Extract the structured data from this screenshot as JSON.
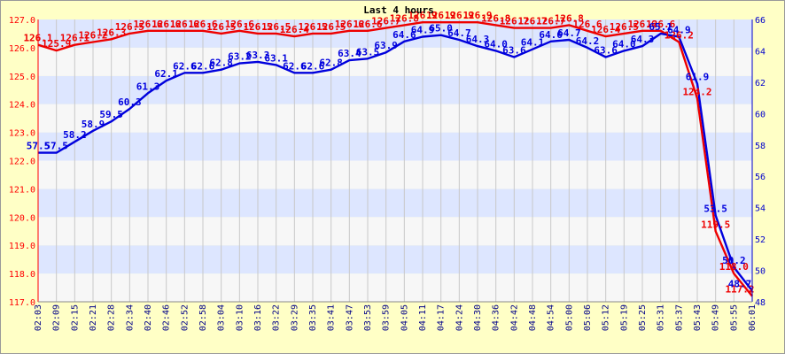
{
  "chart_data": {
    "type": "line",
    "title": "Last 4 hours",
    "grid": true,
    "colors": {
      "background": "#FFFFC6",
      "band_light": "#F7F7F7",
      "band_dark": "#DDE6FF",
      "gridline": "#C8C8C8",
      "left_axis": "#FF0000",
      "right_axis": "#0000CC"
    },
    "x_categories": [
      "02:03",
      "02:09",
      "02:15",
      "02:21",
      "02:28",
      "02:34",
      "02:40",
      "02:46",
      "02:52",
      "02:58",
      "03:04",
      "03:10",
      "03:16",
      "03:22",
      "03:29",
      "03:35",
      "03:41",
      "03:47",
      "03:53",
      "03:59",
      "04:05",
      "04:11",
      "04:17",
      "04:24",
      "04:30",
      "04:36",
      "04:42",
      "04:48",
      "04:54",
      "05:00",
      "05:06",
      "05:12",
      "05:19",
      "05:25",
      "05:31",
      "05:37",
      "05:43",
      "05:49",
      "05:55",
      "06:01"
    ],
    "y_left": {
      "range": [
        117.0,
        127.0
      ],
      "ticks": [
        "117.0",
        "118.0",
        "119.0",
        "120.0",
        "121.0",
        "122.0",
        "123.0",
        "124.0",
        "125.0",
        "126.0",
        "127.0"
      ]
    },
    "y_right": {
      "range": [
        48,
        66
      ],
      "ticks": [
        "48",
        "50",
        "52",
        "54",
        "56",
        "58",
        "60",
        "62",
        "64",
        "66"
      ]
    },
    "series": [
      {
        "axis": "left",
        "color": "#EE0000",
        "points": [
          [
            0,
            126.1
          ],
          [
            1,
            125.9
          ],
          [
            2,
            126.1
          ],
          [
            3,
            126.2
          ],
          [
            4,
            126.3
          ],
          [
            5,
            126.5
          ],
          [
            6,
            126.6
          ],
          [
            7,
            126.6
          ],
          [
            8,
            126.6
          ],
          [
            9,
            126.6
          ],
          [
            10,
            126.5
          ],
          [
            11,
            126.6
          ],
          [
            12,
            126.5
          ],
          [
            13,
            126.5
          ],
          [
            14,
            126.4
          ],
          [
            15,
            126.5
          ],
          [
            16,
            126.5
          ],
          [
            17,
            126.6
          ],
          [
            18,
            126.6
          ],
          [
            19,
            126.7
          ],
          [
            20,
            126.8
          ],
          [
            21,
            126.9
          ],
          [
            22,
            126.9
          ],
          [
            23,
            126.9
          ],
          [
            24,
            126.9
          ],
          [
            25,
            126.8
          ],
          [
            26,
            126.7
          ],
          [
            27,
            126.7
          ],
          [
            28,
            126.7
          ],
          [
            29,
            126.8
          ],
          [
            30,
            126.6
          ],
          [
            31,
            126.4
          ],
          [
            32,
            126.5
          ],
          [
            33,
            126.6
          ],
          [
            34,
            126.6
          ],
          [
            35,
            126.2
          ],
          [
            36,
            124.2
          ],
          [
            37,
            119.5
          ],
          [
            38,
            118.0
          ],
          [
            39,
            117.2
          ]
        ],
        "labels": [
          {
            "i": 0,
            "text": "126.1"
          },
          {
            "i": 1,
            "text": "125.9"
          },
          {
            "i": 2,
            "text": "126.1"
          },
          {
            "i": 3,
            "text": "126.2"
          },
          {
            "i": 4,
            "text": "126.3"
          },
          {
            "i": 5,
            "text": "126.5"
          },
          {
            "i": 6,
            "text": "126.6"
          },
          {
            "i": 7,
            "text": "126.6"
          },
          {
            "i": 8,
            "text": "126.6"
          },
          {
            "i": 9,
            "text": "126.6"
          },
          {
            "i": 10,
            "text": "126.5"
          },
          {
            "i": 11,
            "text": "126.6"
          },
          {
            "i": 12,
            "text": "126.5"
          },
          {
            "i": 13,
            "text": "126.5"
          },
          {
            "i": 14,
            "text": "126.4"
          },
          {
            "i": 15,
            "text": "126.5"
          },
          {
            "i": 16,
            "text": "126.5"
          },
          {
            "i": 17,
            "text": "126.6"
          },
          {
            "i": 18,
            "text": "126.6"
          },
          {
            "i": 19,
            "text": "126.7"
          },
          {
            "i": 20,
            "text": "126.8"
          },
          {
            "i": 21,
            "text": "126.9"
          },
          {
            "i": 22,
            "text": "126.9"
          },
          {
            "i": 23,
            "text": "126.9"
          },
          {
            "i": 24,
            "text": "126.9"
          },
          {
            "i": 25,
            "text": "126.8"
          },
          {
            "i": 26,
            "text": "126.7"
          },
          {
            "i": 27,
            "text": "126.7"
          },
          {
            "i": 28,
            "text": "126.7"
          },
          {
            "i": 29,
            "text": "126.8"
          },
          {
            "i": 30,
            "text": "126.6"
          },
          {
            "i": 31,
            "text": "126.4"
          },
          {
            "i": 32,
            "text": "126.5"
          },
          {
            "i": 33,
            "text": "126.6"
          },
          {
            "i": 34,
            "text": "126.6"
          },
          {
            "i": 35,
            "text": "126.2"
          },
          {
            "i": 36,
            "text": "124.2"
          },
          {
            "i": 37,
            "text": "119.5"
          },
          {
            "i": 38,
            "text": "118.0"
          },
          {
            "i": 39,
            "text": "117.2"
          }
        ]
      },
      {
        "axis": "right",
        "color": "#0000DD",
        "points": [
          [
            0,
            57.5
          ],
          [
            1,
            57.5
          ],
          [
            2,
            58.2
          ],
          [
            3,
            58.9
          ],
          [
            4,
            59.5
          ],
          [
            5,
            60.3
          ],
          [
            6,
            61.3
          ],
          [
            7,
            62.1
          ],
          [
            8,
            62.6
          ],
          [
            9,
            62.6
          ],
          [
            10,
            62.8
          ],
          [
            11,
            63.2
          ],
          [
            12,
            63.3
          ],
          [
            13,
            63.1
          ],
          [
            14,
            62.6
          ],
          [
            15,
            62.6
          ],
          [
            16,
            62.8
          ],
          [
            17,
            63.4
          ],
          [
            18,
            63.5
          ],
          [
            19,
            63.9
          ],
          [
            20,
            64.6
          ],
          [
            21,
            64.9
          ],
          [
            22,
            65.0
          ],
          [
            23,
            64.7
          ],
          [
            24,
            64.3
          ],
          [
            25,
            64.0
          ],
          [
            26,
            63.6
          ],
          [
            27,
            64.1
          ],
          [
            28,
            64.6
          ],
          [
            29,
            64.7
          ],
          [
            30,
            64.2
          ],
          [
            31,
            63.6
          ],
          [
            32,
            64.0
          ],
          [
            33,
            64.3
          ],
          [
            34,
            65.1
          ],
          [
            35,
            64.9
          ],
          [
            36,
            61.9
          ],
          [
            37,
            53.5
          ],
          [
            38,
            50.2
          ],
          [
            39,
            48.7
          ]
        ],
        "labels": [
          {
            "i": 0,
            "text": "57.5"
          },
          {
            "i": 1,
            "text": "57.5"
          },
          {
            "i": 2,
            "text": "58.2"
          },
          {
            "i": 3,
            "text": "58.9"
          },
          {
            "i": 4,
            "text": "59.5"
          },
          {
            "i": 5,
            "text": "60.3"
          },
          {
            "i": 6,
            "text": "61.3"
          },
          {
            "i": 7,
            "text": "62.1"
          },
          {
            "i": 8,
            "text": "62.6"
          },
          {
            "i": 9,
            "text": "62.6"
          },
          {
            "i": 10,
            "text": "62.8"
          },
          {
            "i": 11,
            "text": "63.2"
          },
          {
            "i": 12,
            "text": "63.3"
          },
          {
            "i": 13,
            "text": "63.1"
          },
          {
            "i": 14,
            "text": "62.6"
          },
          {
            "i": 15,
            "text": "62.6"
          },
          {
            "i": 16,
            "text": "62.8"
          },
          {
            "i": 17,
            "text": "63.4"
          },
          {
            "i": 18,
            "text": "63.5"
          },
          {
            "i": 19,
            "text": "63.9"
          },
          {
            "i": 20,
            "text": "64.6"
          },
          {
            "i": 21,
            "text": "64.9"
          },
          {
            "i": 22,
            "text": "65.0"
          },
          {
            "i": 23,
            "text": "64.7"
          },
          {
            "i": 24,
            "text": "64.3"
          },
          {
            "i": 25,
            "text": "64.0"
          },
          {
            "i": 26,
            "text": "63.6"
          },
          {
            "i": 27,
            "text": "64.1"
          },
          {
            "i": 28,
            "text": "64.6"
          },
          {
            "i": 29,
            "text": "64.7"
          },
          {
            "i": 30,
            "text": "64.2"
          },
          {
            "i": 31,
            "text": "63.6"
          },
          {
            "i": 32,
            "text": "64.0"
          },
          {
            "i": 33,
            "text": "64.3"
          },
          {
            "i": 34,
            "text": "65.1"
          },
          {
            "i": 35,
            "text": "64.9"
          },
          {
            "i": 36,
            "text": "61.9"
          },
          {
            "i": 37,
            "text": "53.5"
          },
          {
            "i": 38,
            "text": "50.2"
          },
          {
            "i": 39,
            "text": "48.7"
          }
        ]
      }
    ]
  }
}
